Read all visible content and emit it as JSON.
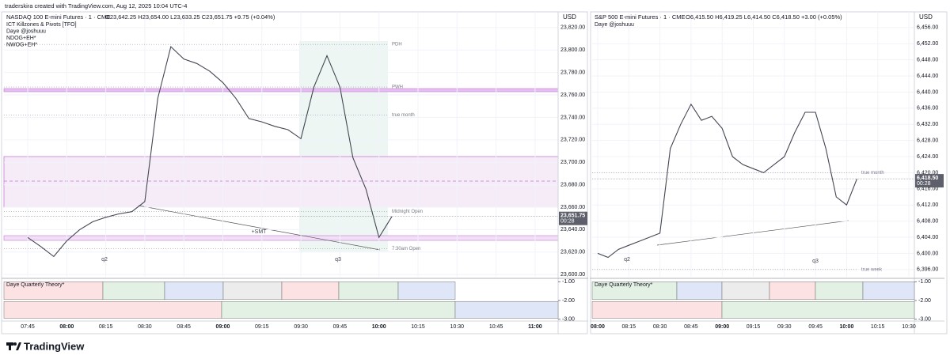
{
  "header": {
    "credit": "traderskira created with TradingView.com, Aug 12, 2025 10:04 UTC-4"
  },
  "panels": [
    {
      "title": "NASDAQ 100 E-mini Futures · 1 · CME",
      "ohlc": "O23,642.25 H23,654.00 L23,633.25 C23,651.75 +9.75 (+0.04%)",
      "indicators": [
        "ICT Killzones & Pivots [TFO]",
        "Daye @joshuuu",
        "NDOG+EH*",
        "NWOG+EH*"
      ],
      "currency": "USD",
      "ylim": [
        23598,
        23834
      ],
      "yticks": [
        {
          "value": 23820,
          "label": "23,820.00"
        },
        {
          "value": 23800,
          "label": "23,800.00"
        },
        {
          "value": 23780,
          "label": "23,780.00"
        },
        {
          "value": 23760,
          "label": "23,760.00"
        },
        {
          "value": 23740,
          "label": "23,740.00"
        },
        {
          "value": 23720,
          "label": "23,720.00"
        },
        {
          "value": 23700,
          "label": "23,700.00"
        },
        {
          "value": 23680,
          "label": "23,680.00"
        },
        {
          "value": 23660,
          "label": "23,660.00"
        },
        {
          "value": 23640,
          "label": "23,640.00"
        },
        {
          "value": 23620,
          "label": "23,620.00"
        },
        {
          "value": 23600,
          "label": "23,600.00"
        }
      ],
      "xticks": [
        "07:45",
        "08:00",
        "08:15",
        "08:30",
        "08:45",
        "09:00",
        "09:15",
        "09:30",
        "09:45",
        "10:00",
        "10:15",
        "10:30",
        "10:45",
        "11:00"
      ],
      "closes": [
        23633,
        23625,
        23616,
        23630,
        23640,
        23647,
        23651,
        23654,
        23656,
        23665,
        23757,
        23803,
        23792,
        23788,
        23781,
        23771,
        23757,
        23739,
        23736,
        23732,
        23729,
        23721,
        23767,
        23795,
        23767,
        23704,
        23676,
        23633,
        23651.75
      ],
      "last": {
        "value": 23651.75,
        "label": "23,651.75",
        "countdown": "00:28"
      },
      "levels": [
        {
          "label": "PDH",
          "value": 23805
        },
        {
          "label": "PWH",
          "value": 23767
        },
        {
          "label": "true month",
          "value": 23742
        },
        {
          "label": "Midnight Open",
          "value": 23656
        },
        {
          "label": "7:30am Open",
          "value": 23623
        }
      ],
      "annotations": [
        "q2",
        "q3",
        "+SMT"
      ],
      "pane": {
        "title": "Daye Quarterly Theory*",
        "yticks": [
          {
            "value": -1,
            "label": "-1.00"
          },
          {
            "value": -2,
            "label": "-2.00"
          },
          {
            "value": -3,
            "label": "-3.00"
          }
        ]
      }
    },
    {
      "title": "S&P 500 E-mini Futures · 1 · CME",
      "ohlc": "O6,415.50 H6,419.25 L6,414.50 C6,418.50 +3.00 (+0.05%)",
      "indicators": [
        "Daye @joshuuu"
      ],
      "currency": "USD",
      "ylim": [
        6394.2,
        6459.9
      ],
      "yticks": [
        {
          "value": 6456,
          "label": "6,456.00"
        },
        {
          "value": 6452,
          "label": "6,452.00"
        },
        {
          "value": 6448,
          "label": "6,448.00"
        },
        {
          "value": 6444,
          "label": "6,444.00"
        },
        {
          "value": 6440,
          "label": "6,440.00"
        },
        {
          "value": 6436,
          "label": "6,436.00"
        },
        {
          "value": 6432,
          "label": "6,432.00"
        },
        {
          "value": 6428,
          "label": "6,428.00"
        },
        {
          "value": 6424,
          "label": "6,424.00"
        },
        {
          "value": 6420,
          "label": "6,420.00"
        },
        {
          "value": 6416,
          "label": "6,416.00"
        },
        {
          "value": 6412,
          "label": "6,412.00"
        },
        {
          "value": 6408,
          "label": "6,408.00"
        },
        {
          "value": 6404,
          "label": "6,404.00"
        },
        {
          "value": 6400,
          "label": "6,400.00"
        },
        {
          "value": 6396,
          "label": "6,396.00"
        }
      ],
      "xticks": [
        "08:00",
        "08:15",
        "08:30",
        "08:45",
        "09:00",
        "09:15",
        "09:30",
        "09:45",
        "10:00",
        "10:15",
        "10:30"
      ],
      "closes": [
        6400,
        6399,
        6401,
        6402,
        6403,
        6404,
        6405,
        6426,
        6432,
        6437,
        6433,
        6434,
        6431,
        6424,
        6422,
        6421,
        6420,
        6422,
        6424,
        6430,
        6435,
        6435,
        6426,
        6414,
        6412,
        6418.5
      ],
      "last": {
        "value": 6418.5,
        "label": "6,418.50",
        "countdown": "00:28"
      },
      "levels": [
        {
          "label": "true month",
          "value": 6420
        },
        {
          "label": "true week",
          "value": 6396
        }
      ],
      "annotations": [
        "q2",
        "q3"
      ],
      "pane": {
        "title": "Daye Quarterly Theory*",
        "yticks": [
          {
            "value": -1,
            "label": "-1.00"
          },
          {
            "value": -2,
            "label": "-2.00"
          },
          {
            "value": -3,
            "label": "-3.00"
          }
        ]
      }
    }
  ],
  "footer": {
    "brand": "TradingView"
  }
}
